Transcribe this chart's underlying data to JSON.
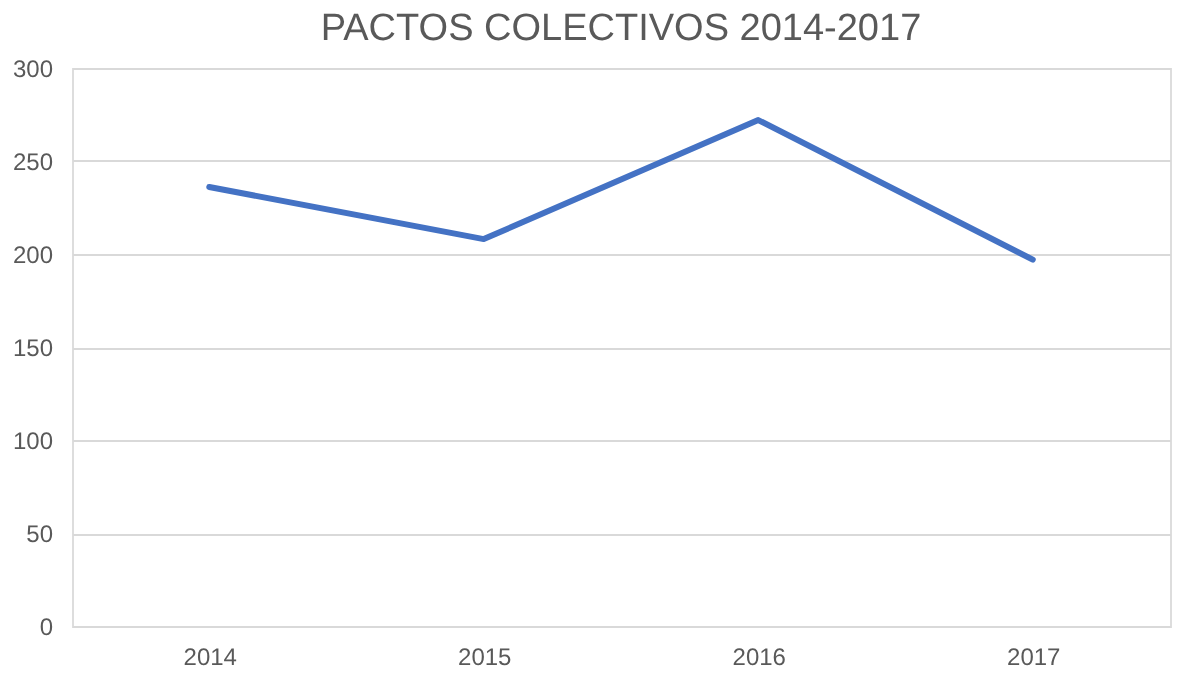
{
  "chart_data": {
    "type": "line",
    "title": "PACTOS COLECTIVOS 2014-2017",
    "categories": [
      "2014",
      "2015",
      "2016",
      "2017"
    ],
    "series": [
      {
        "color": "#4472c4",
        "values": [
          236,
          208,
          272,
          197
        ]
      }
    ],
    "ylim": [
      0,
      300
    ],
    "yticks": [
      0,
      50,
      100,
      150,
      200,
      250,
      300
    ],
    "grid": "y",
    "marker": "none",
    "line_style": "solid"
  }
}
